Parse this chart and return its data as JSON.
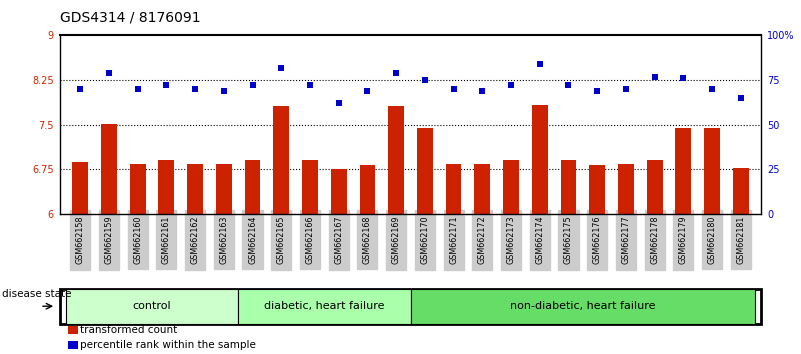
{
  "title": "GDS4314 / 8176091",
  "samples": [
    "GSM662158",
    "GSM662159",
    "GSM662160",
    "GSM662161",
    "GSM662162",
    "GSM662163",
    "GSM662164",
    "GSM662165",
    "GSM662166",
    "GSM662167",
    "GSM662168",
    "GSM662169",
    "GSM662170",
    "GSM662171",
    "GSM662172",
    "GSM662173",
    "GSM662174",
    "GSM662175",
    "GSM662176",
    "GSM662177",
    "GSM662178",
    "GSM662179",
    "GSM662180",
    "GSM662181"
  ],
  "bar_values": [
    6.87,
    7.52,
    6.85,
    6.91,
    6.85,
    6.84,
    6.91,
    7.81,
    6.91,
    6.75,
    6.83,
    7.81,
    7.45,
    6.85,
    6.84,
    6.91,
    7.83,
    6.91,
    6.83,
    6.84,
    6.91,
    7.45,
    7.45,
    6.78
  ],
  "dot_values": [
    70,
    79,
    70,
    72,
    70,
    69,
    72,
    82,
    72,
    62,
    69,
    79,
    75,
    70,
    69,
    72,
    84,
    72,
    69,
    70,
    77,
    76,
    70,
    65
  ],
  "bar_color": "#cc2200",
  "dot_color": "#0000cc",
  "ylim_left": [
    6,
    9
  ],
  "ylim_right": [
    0,
    100
  ],
  "yticks_left": [
    6,
    6.75,
    7.5,
    8.25,
    9
  ],
  "ytick_labels_left": [
    "6",
    "6.75",
    "7.5",
    "8.25",
    "9"
  ],
  "yticks_right": [
    0,
    25,
    50,
    75,
    100
  ],
  "ytick_labels_right": [
    "0",
    "25",
    "50",
    "75",
    "100%"
  ],
  "hlines": [
    6.75,
    7.5,
    8.25
  ],
  "groups": [
    {
      "label": "control",
      "start": 0,
      "end": 5,
      "color": "#ccffcc"
    },
    {
      "label": "diabetic, heart failure",
      "start": 6,
      "end": 11,
      "color": "#aaffaa"
    },
    {
      "label": "non-diabetic, heart failure",
      "start": 12,
      "end": 23,
      "color": "#66dd66"
    }
  ],
  "legend_items": [
    {
      "label": "transformed count",
      "color": "#cc2200"
    },
    {
      "label": "percentile rank within the sample",
      "color": "#0000cc"
    }
  ],
  "bg_color": "#ffffff",
  "tick_bg_color": "#cccccc",
  "title_fontsize": 10,
  "tick_fontsize": 7,
  "bar_width": 0.55,
  "bar_bottom": 6
}
